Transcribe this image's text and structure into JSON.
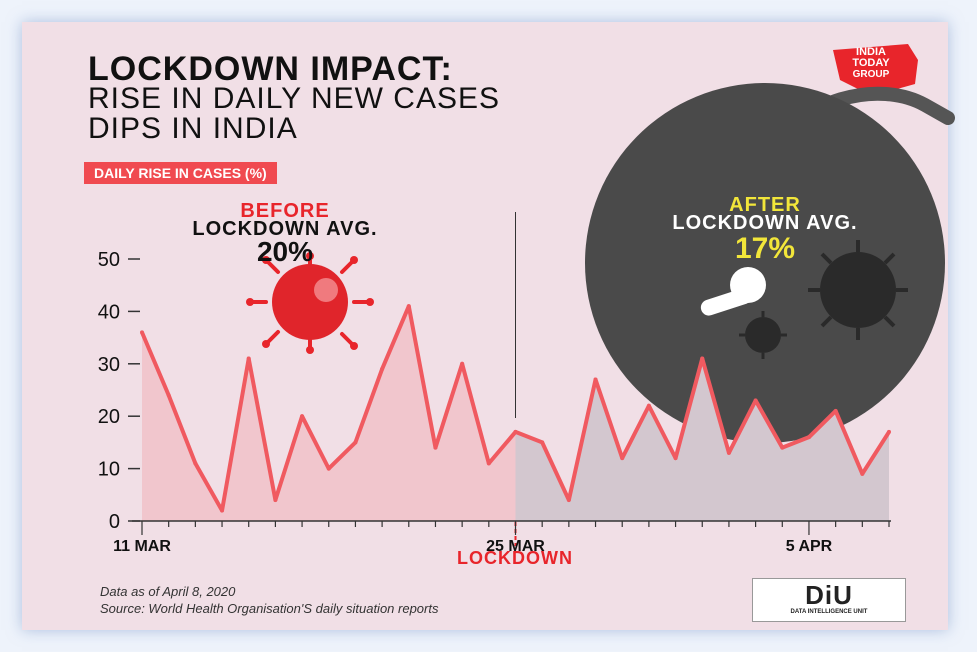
{
  "header": {
    "title_line1": "LOCKDOWN IMPACT:",
    "title_line2": "RISE IN DAILY NEW CASES",
    "title_line3": "DIPS IN INDIA",
    "badge": "DAILY RISE IN CASES  (%)"
  },
  "callouts": {
    "before_word": "BEFORE",
    "before_label": "LOCKDOWN AVG.",
    "before_value": "20%",
    "after_word": "AFTER",
    "after_label": "LOCKDOWN AVG.",
    "after_value": "17%"
  },
  "brand": {
    "logo_line1": "INDIA",
    "logo_line2": "TODAY",
    "logo_line3": "GROUP",
    "logo_color": "#e8252b",
    "diu_text": "DiU",
    "diu_sub": "DATA INTELLIGENCE UNIT"
  },
  "footer": {
    "note": "Data as of April 8, 2020",
    "source": "Source: World Health Organisation'S daily situation reports"
  },
  "colors": {
    "line": "#f05a60",
    "before_fill": "#f1c6cd",
    "after_fill": "#d3c7cf",
    "accent_red": "#e8252b",
    "dark_circle": "#4a4a4a",
    "after_highlight": "#f2e63a"
  },
  "icons": [
    "virus-icon",
    "lock-icon",
    "lock-shackle-icon"
  ],
  "chart_data": {
    "type": "area",
    "ylim": [
      0,
      55
    ],
    "yticks": [
      0,
      10,
      20,
      30,
      40,
      50
    ],
    "x_tick_labels": [
      {
        "index": 0,
        "label": "11 MAR"
      },
      {
        "index": 14,
        "label": "25 MAR"
      },
      {
        "index": 25,
        "label": "5 APR"
      }
    ],
    "lockdown_index": 14,
    "lockdown_label": "LOCKDOWN",
    "values": [
      36,
      24,
      11,
      2,
      31,
      4,
      20,
      10,
      15,
      29,
      41,
      14,
      30,
      11,
      17,
      15,
      4,
      27,
      12,
      22,
      12,
      31,
      13,
      23,
      14,
      16,
      21,
      9,
      17
    ]
  }
}
